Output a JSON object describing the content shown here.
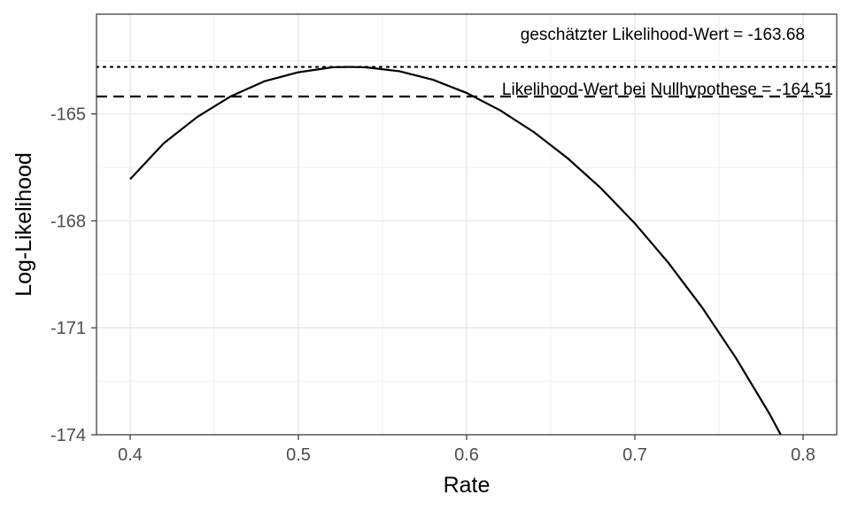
{
  "chart_data": {
    "type": "line",
    "title": "",
    "xlabel": "Rate",
    "ylabel": "Log-Likelihood",
    "xlim": [
      0.38,
      0.82
    ],
    "ylim": [
      -174,
      -162.2
    ],
    "x_ticks": [
      0.4,
      0.5,
      0.6,
      0.7,
      0.8
    ],
    "x_tick_labels": [
      "0.4",
      "0.5",
      "0.6",
      "0.7",
      "0.8"
    ],
    "y_ticks": [
      -165,
      -168,
      -171,
      -174
    ],
    "y_tick_labels": [
      "-165",
      "-168",
      "-171",
      "-174"
    ],
    "grid": true,
    "legend": "none",
    "series": [
      {
        "x": [
          0.4,
          0.42,
          0.44,
          0.46,
          0.48,
          0.5,
          0.52,
          0.53,
          0.54,
          0.56,
          0.58,
          0.6,
          0.62,
          0.64,
          0.66,
          0.68,
          0.7,
          0.72,
          0.74,
          0.76,
          0.78,
          0.8
        ],
        "y": [
          -166.83,
          -165.82,
          -165.08,
          -164.5,
          -164.08,
          -163.83,
          -163.69,
          -163.68,
          -163.69,
          -163.8,
          -164.04,
          -164.41,
          -164.9,
          -165.51,
          -166.24,
          -167.09,
          -168.07,
          -169.18,
          -170.43,
          -171.84,
          -173.41,
          -175.16
        ],
        "color": "#000000"
      }
    ],
    "reference_lines": [
      {
        "y": -163.68,
        "style": "dotted",
        "label": "geschätzter Likelihood-Wert = -163.68"
      },
      {
        "y": -164.51,
        "style": "dashed",
        "label": "Likelihood-Wert bei Nullhypothese = -164.51"
      }
    ]
  }
}
